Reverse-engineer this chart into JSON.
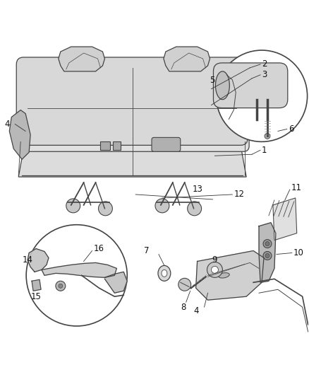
{
  "bg": "#ffffff",
  "lc": "#444444",
  "label_fs": 8.5,
  "seat_color": "#d8d8d8",
  "seat_edge": "#555555",
  "part_color": "#cccccc",
  "white": "#ffffff"
}
